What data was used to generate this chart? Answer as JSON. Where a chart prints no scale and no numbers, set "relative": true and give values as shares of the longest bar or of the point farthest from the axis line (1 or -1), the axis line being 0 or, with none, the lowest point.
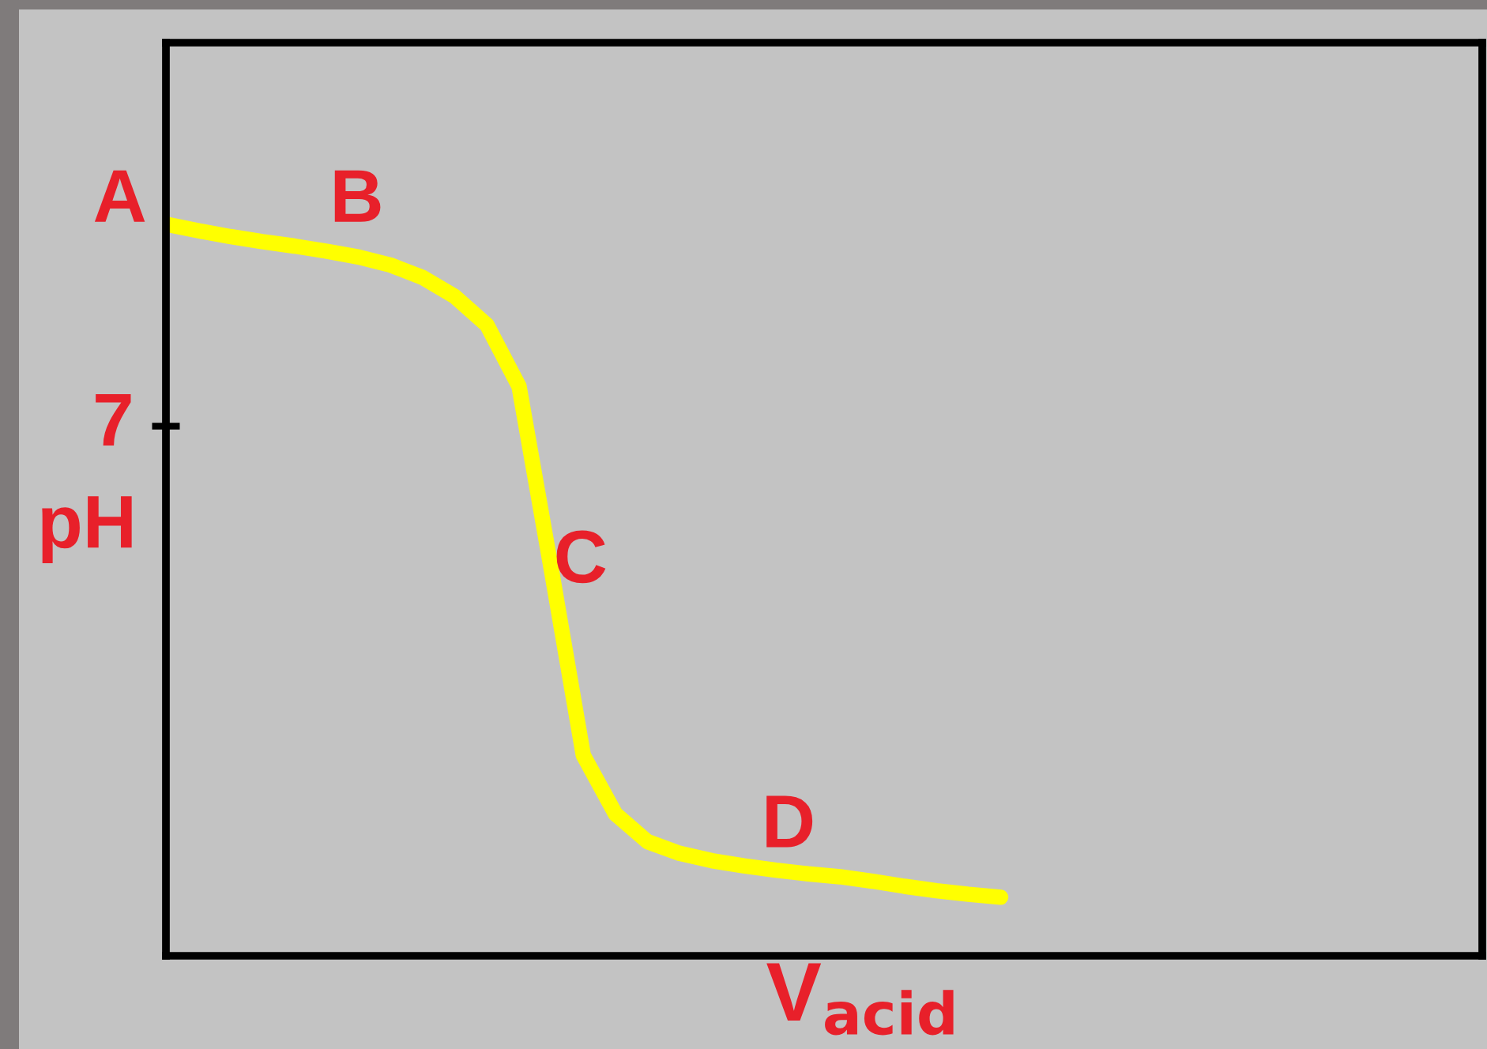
{
  "chart_data": {
    "type": "line",
    "relative": true,
    "xlabel": "V$_{acid}$",
    "ylabel": "pH",
    "categories": [
      null,
      null,
      null,
      null,
      null,
      null,
      null,
      null,
      null,
      null,
      null,
      null,
      null,
      null,
      null,
      null,
      null,
      null,
      null,
      null,
      null,
      null,
      null,
      null,
      null,
      null,
      null,
      null,
      null,
      null,
      null,
      null,
      null,
      null,
      null,
      null,
      null,
      null,
      null,
      null,
      null,
      null
    ],
    "series": [
      {
        "color": "#ffff00",
        "values": [
          1,
          0.991,
          0.983,
          0.976,
          0.97,
          0.963,
          0.955,
          0.944,
          0.927,
          0.901,
          0.862,
          0.778,
          0.529,
          0.274,
          0.194,
          0.156,
          0.14,
          0.13,
          0.123,
          0.117,
          0.112,
          0.108,
          0.102,
          0.095,
          0.089,
          0.084,
          0.08,
          null,
          null,
          null,
          null,
          null,
          null,
          null,
          null,
          null,
          null,
          null,
          null,
          null,
          null,
          null
        ]
      }
    ],
    "annotations": [
      "7",
      "A",
      "B",
      "C",
      "D"
    ],
    "marker": "none",
    "line_style": "solid"
  }
}
